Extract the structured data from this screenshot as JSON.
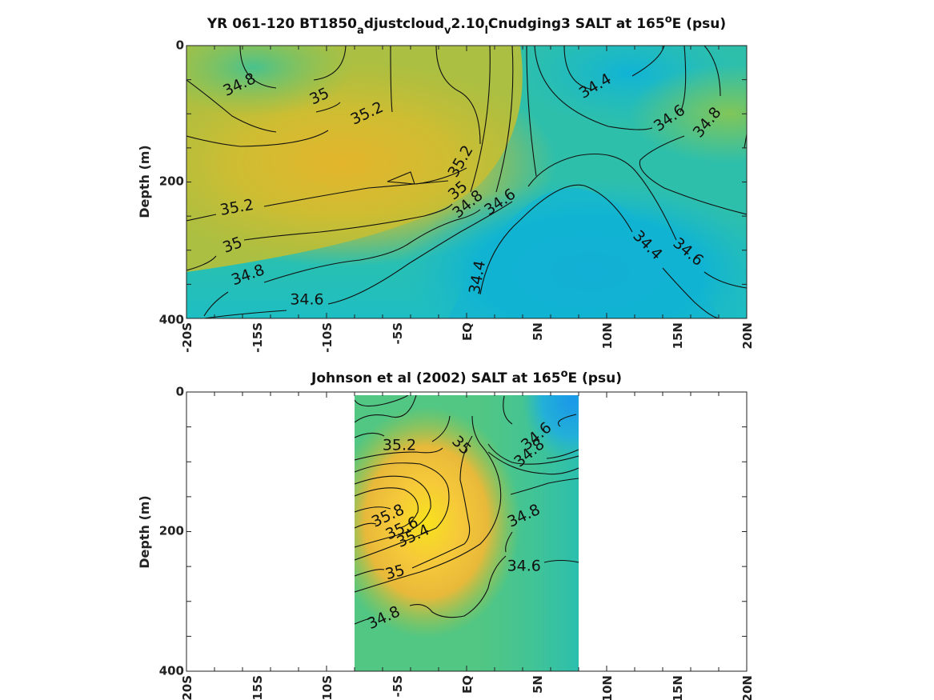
{
  "chart_data": [
    {
      "type": "contour",
      "title_parts": {
        "main": "YR 061-120 BT1850",
        "sub_a": "a",
        "part2": "djustcloud",
        "sub_v": "v",
        "part3": "2.10",
        "sub_l": "l",
        "part4": "Cnudging3 SALT at 165",
        "sup": "o",
        "part5": "E (psu)"
      },
      "ylabel": "Depth (m)",
      "xlim": [
        -20,
        20
      ],
      "ylim": [
        400,
        0
      ],
      "xticks": [
        "-20S",
        "-15S",
        "-10S",
        "-5S",
        "EQ",
        "5N",
        "10N",
        "15N",
        "20N"
      ],
      "yticks": [
        "0",
        "200",
        "400"
      ],
      "contour_labels": [
        {
          "value": "34.8",
          "lat": -16.2,
          "depth": 58,
          "angle": -25
        },
        {
          "value": "35",
          "lat": -10.5,
          "depth": 75,
          "angle": -25
        },
        {
          "value": "35.2",
          "lat": -7.1,
          "depth": 100,
          "angle": -25
        },
        {
          "value": "35.2",
          "lat": -0.4,
          "depth": 170,
          "angle": -60
        },
        {
          "value": "35",
          "lat": -0.6,
          "depth": 213,
          "angle": -40
        },
        {
          "value": "34.8",
          "lat": 0.1,
          "depth": 233,
          "angle": -40
        },
        {
          "value": "34.6",
          "lat": 2.4,
          "depth": 230,
          "angle": -35
        },
        {
          "value": "35.2",
          "lat": -16.4,
          "depth": 238,
          "angle": -10
        },
        {
          "value": "35",
          "lat": -16.7,
          "depth": 293,
          "angle": -20
        },
        {
          "value": "34.8",
          "lat": -15.6,
          "depth": 337,
          "angle": -20
        },
        {
          "value": "34.6",
          "lat": -11.4,
          "depth": 373,
          "angle": 0
        },
        {
          "value": "34.4",
          "lat": 0.8,
          "depth": 340,
          "angle": -80
        },
        {
          "value": "34.4",
          "lat": 9.2,
          "depth": 60,
          "angle": -30
        },
        {
          "value": "34.6",
          "lat": 14.5,
          "depth": 107,
          "angle": -35
        },
        {
          "value": "34.8",
          "lat": 17.2,
          "depth": 113,
          "angle": -50
        },
        {
          "value": "34.4",
          "lat": 12.9,
          "depth": 293,
          "angle": 45
        },
        {
          "value": "34.6",
          "lat": 15.8,
          "depth": 303,
          "angle": 40
        }
      ]
    },
    {
      "type": "contour",
      "title_parts": {
        "main": "Johnson et al (2002) SALT at 165",
        "sup": "o",
        "part2": "E (psu)"
      },
      "ylabel": "Depth (m)",
      "xlim": [
        -20,
        20
      ],
      "ylim": [
        400,
        0
      ],
      "data_lat_range": [
        -8,
        8
      ],
      "xticks": [
        "-20S",
        "-15S",
        "-10S",
        "-5S",
        "EQ",
        "5N",
        "10N",
        "15N",
        "20N"
      ],
      "yticks": [
        "0",
        "200",
        "400"
      ],
      "contour_labels": [
        {
          "value": "35.2",
          "lat": -4.8,
          "depth": 77,
          "angle": 0
        },
        {
          "value": "35",
          "lat": -0.4,
          "depth": 77,
          "angle": 45
        },
        {
          "value": "34.6",
          "lat": 5.0,
          "depth": 64,
          "angle": -40
        },
        {
          "value": "34.8",
          "lat": 4.5,
          "depth": 88,
          "angle": -40
        },
        {
          "value": "35.8",
          "lat": -5.6,
          "depth": 178,
          "angle": -25
        },
        {
          "value": "35.6",
          "lat": -4.6,
          "depth": 196,
          "angle": -25
        },
        {
          "value": "35.4",
          "lat": -3.8,
          "depth": 207,
          "angle": -25
        },
        {
          "value": "34.8",
          "lat": 4.1,
          "depth": 178,
          "angle": -25
        },
        {
          "value": "35",
          "lat": -5.1,
          "depth": 259,
          "angle": -15
        },
        {
          "value": "34.6",
          "lat": 4.1,
          "depth": 250,
          "angle": 0
        },
        {
          "value": "34.8",
          "lat": -5.9,
          "depth": 324,
          "angle": -25
        }
      ]
    }
  ]
}
